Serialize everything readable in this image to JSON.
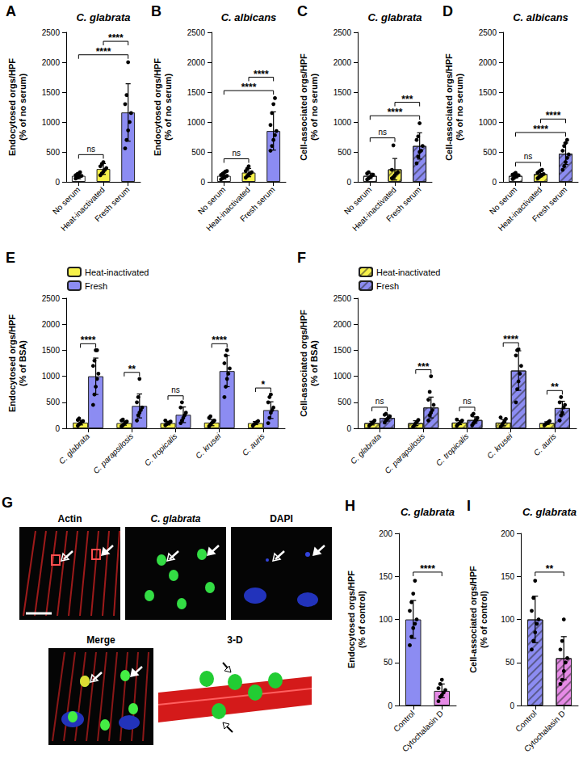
{
  "chart_data": [
    {
      "panel": "A",
      "type": "bar",
      "title": "C. glabrata",
      "y_label": [
        "Endocytosed orgs/HPF",
        "(% of no serum)"
      ],
      "categories": [
        "No serum",
        "Heat-inactivated",
        "Fresh serum"
      ],
      "values": [
        100,
        215,
        1160
      ],
      "errors": [
        50,
        90,
        480
      ],
      "points": [
        [
          55,
          70,
          85,
          95,
          100,
          110,
          125,
          140,
          160
        ],
        [
          110,
          140,
          170,
          200,
          230,
          260,
          300,
          330
        ],
        [
          560,
          700,
          860,
          1000,
          1150,
          1300,
          1450,
          2000
        ]
      ],
      "colors": [
        "#ffffff",
        "#f7f24a",
        "#8c8cf2"
      ],
      "ylim": [
        0,
        2500
      ],
      "yticks": [
        0,
        500,
        1000,
        1500,
        2000,
        2500
      ],
      "grid": false,
      "comparisons": [
        {
          "between": [
            0,
            1
          ],
          "label": "ns"
        },
        {
          "between": [
            0,
            2
          ],
          "label": "****"
        },
        {
          "between": [
            1,
            2
          ],
          "label": "****"
        }
      ]
    },
    {
      "panel": "B",
      "type": "bar",
      "title": "C. albicans",
      "y_label": [
        "Endocytosed orgs/HPF",
        "(% of no serum)"
      ],
      "categories": [
        "No serum",
        "Heat-inactivated",
        "Fresh serum"
      ],
      "values": [
        100,
        155,
        850
      ],
      "errors": [
        55,
        70,
        320
      ],
      "points": [
        [
          40,
          60,
          75,
          90,
          100,
          115,
          130,
          150,
          170,
          180
        ],
        [
          70,
          100,
          120,
          140,
          160,
          180,
          220,
          260
        ],
        [
          520,
          600,
          700,
          780,
          850,
          950,
          1150,
          1300,
          1400
        ]
      ],
      "colors": [
        "#ffffff",
        "#f7f24a",
        "#8c8cf2"
      ],
      "ylim": [
        0,
        2500
      ],
      "yticks": [
        0,
        500,
        1000,
        1500,
        2000,
        2500
      ],
      "grid": false,
      "comparisons": [
        {
          "between": [
            0,
            1
          ],
          "label": "ns"
        },
        {
          "between": [
            0,
            2
          ],
          "label": "****"
        },
        {
          "between": [
            1,
            2
          ],
          "label": "****"
        }
      ]
    },
    {
      "panel": "C",
      "type": "bar",
      "title": "C. glabrata",
      "y_label": [
        "Cell-associated orgs/HPF",
        "(% of no serum)"
      ],
      "categories": [
        "No serum",
        "Heat-inactivated",
        "Fresh serum"
      ],
      "values": [
        100,
        210,
        600
      ],
      "errors": [
        45,
        180,
        220
      ],
      "points": [
        [
          40,
          60,
          80,
          100,
          120,
          140,
          160
        ],
        [
          60,
          80,
          110,
          140,
          160,
          200,
          610
        ],
        [
          310,
          420,
          500,
          520,
          600,
          700,
          760,
          980
        ]
      ],
      "colors": [
        "#ffffff",
        "#f7f24a",
        "#8c8cf2"
      ],
      "line_style": "hatched",
      "ylim": [
        0,
        2500
      ],
      "yticks": [
        0,
        500,
        1000,
        1500,
        2000,
        2500
      ],
      "grid": false,
      "comparisons": [
        {
          "between": [
            0,
            1
          ],
          "label": "ns"
        },
        {
          "between": [
            0,
            2
          ],
          "label": "****"
        },
        {
          "between": [
            1,
            2
          ],
          "label": "***"
        }
      ]
    },
    {
      "panel": "D",
      "type": "bar",
      "title": "C. albicans",
      "y_label": [
        "Cell-associated orgs/HPF",
        "(% of no serum)"
      ],
      "categories": [
        "No serum",
        "Heat-inactivated",
        "Fresh serum"
      ],
      "values": [
        100,
        130,
        470
      ],
      "errors": [
        35,
        45,
        180
      ],
      "points": [
        [
          50,
          70,
          90,
          100,
          110,
          120,
          130,
          150
        ],
        [
          60,
          80,
          100,
          120,
          130,
          150,
          170,
          190,
          200
        ],
        [
          200,
          260,
          330,
          400,
          460,
          520,
          600,
          650,
          700
        ]
      ],
      "colors": [
        "#ffffff",
        "#f7f24a",
        "#8c8cf2"
      ],
      "line_style": "hatched",
      "ylim": [
        0,
        2500
      ],
      "yticks": [
        0,
        500,
        1000,
        1500,
        2000,
        2500
      ],
      "grid": false,
      "comparisons": [
        {
          "between": [
            0,
            1
          ],
          "label": "ns"
        },
        {
          "between": [
            0,
            2
          ],
          "label": "****"
        },
        {
          "between": [
            1,
            2
          ],
          "label": "****"
        }
      ]
    },
    {
      "panel": "E",
      "type": "bar",
      "y_label": [
        "Endocytosed orgs/HPF",
        "(% of BSA)"
      ],
      "categories": [
        "C. glabrata",
        "C. parapsilosis",
        "C. tropicalis",
        "C. krusei",
        "C. auris"
      ],
      "series": [
        {
          "name": "Heat-inactivated",
          "color": "#f7f24a",
          "values": [
            110,
            100,
            100,
            110,
            100
          ],
          "errors": [
            45,
            40,
            35,
            60,
            30
          ],
          "points": [
            [
              50,
              80,
              100,
              120,
              140,
              160,
              190
            ],
            [
              40,
              60,
              90,
              110,
              130,
              150,
              170
            ],
            [
              60,
              80,
              100,
              110,
              130,
              150
            ],
            [
              40,
              70,
              100,
              120,
              150,
              200,
              230
            ],
            [
              50,
              80,
              100,
              120,
              140
            ]
          ]
        },
        {
          "name": "Fresh",
          "color": "#8c8cf2",
          "values": [
            1000,
            430,
            260,
            1100,
            350
          ],
          "errors": [
            350,
            230,
            150,
            300,
            160
          ],
          "points": [
            [
              450,
              650,
              800,
              950,
              1050,
              1200,
              1300,
              1500,
              1500
            ],
            [
              150,
              250,
              300,
              350,
              400,
              500,
              600,
              950
            ],
            [
              100,
              150,
              200,
              250,
              300,
              400,
              500
            ],
            [
              600,
              800,
              950,
              1050,
              1150,
              1250,
              1400,
              1500
            ],
            [
              100,
              200,
              300,
              350,
              400,
              500,
              600,
              650
            ]
          ]
        }
      ],
      "significance": [
        "****",
        "**",
        "ns",
        "****",
        "*"
      ],
      "legend": "top-left",
      "ylim": [
        0,
        2500
      ],
      "yticks": [
        0,
        500,
        1000,
        1500,
        2000,
        2500
      ],
      "grid": false
    },
    {
      "panel": "F",
      "type": "bar",
      "y_label": [
        "Cell-associated orgs/HPF",
        "(% of BSA)"
      ],
      "categories": [
        "C. glabrata",
        "C. parapsilosis",
        "C. tropicalis",
        "C. krusei",
        "C. auris"
      ],
      "series": [
        {
          "name": "Heat-inactivated",
          "color": "#f7f24a",
          "line_style": "hatched",
          "values": [
            100,
            100,
            110,
            110,
            100
          ],
          "errors": [
            35,
            45,
            40,
            60,
            25
          ],
          "points": [
            [
              50,
              80,
              100,
              120,
              150
            ],
            [
              30,
              60,
              100,
              130,
              160
            ],
            [
              50,
              80,
              100,
              120,
              150,
              170
            ],
            [
              30,
              60,
              100,
              130,
              180,
              210
            ],
            [
              60,
              80,
              100,
              120,
              140
            ]
          ]
        },
        {
          "name": "Fresh",
          "color": "#8c8cf2",
          "line_style": "hatched",
          "values": [
            200,
            400,
            160,
            1110,
            390
          ],
          "errors": [
            60,
            200,
            60,
            380,
            130
          ],
          "points": [
            [
              110,
              150,
              180,
              200,
              230,
              260,
              280
            ],
            [
              150,
              250,
              300,
              350,
              450,
              550,
              700,
              1000
            ],
            [
              60,
              100,
              130,
              160,
              200,
              250,
              280
            ],
            [
              500,
              750,
              900,
              1050,
              1200,
              1400,
              1500,
              1520
            ],
            [
              150,
              250,
              300,
              400,
              450,
              500,
              600
            ]
          ]
        }
      ],
      "significance": [
        "ns",
        "***",
        "ns",
        "****",
        "**"
      ],
      "legend": "top-left",
      "ylim": [
        0,
        2500
      ],
      "yticks": [
        0,
        500,
        1000,
        1500,
        2000,
        2500
      ],
      "grid": false
    },
    {
      "panel": "H",
      "type": "bar",
      "title": "C. glabrata",
      "y_label": [
        "Endocytosed orgs/HPF",
        "(% of control)"
      ],
      "categories": [
        "Control",
        "Cytochalasin D"
      ],
      "values": [
        100,
        17
      ],
      "errors": [
        22,
        8
      ],
      "points": [
        [
          70,
          80,
          90,
          95,
          100,
          110,
          120,
          130,
          145
        ],
        [
          5,
          10,
          12,
          15,
          18,
          20,
          25,
          30
        ]
      ],
      "colors": [
        "#8c8cf2",
        "#e68ae6"
      ],
      "ylim": [
        0,
        200
      ],
      "yticks": [
        0,
        50,
        100,
        150,
        200
      ],
      "grid": false,
      "comparisons": [
        {
          "between": [
            0,
            1
          ],
          "label": "****"
        }
      ]
    },
    {
      "panel": "I",
      "type": "bar",
      "title": "C. glabrata",
      "y_label": [
        "Cell-associated orgs/HPF",
        "(% of control)"
      ],
      "categories": [
        "Control",
        "Cytochalasin D"
      ],
      "values": [
        100,
        55
      ],
      "errors": [
        27,
        25
      ],
      "points": [
        [
          65,
          75,
          85,
          95,
          100,
          110,
          125,
          145
        ],
        [
          25,
          30,
          40,
          50,
          55,
          65,
          75,
          100
        ]
      ],
      "colors": [
        "#8c8cf2",
        "#e68ae6"
      ],
      "line_style": "hatched",
      "ylim": [
        0,
        200
      ],
      "yticks": [
        0,
        50,
        100,
        150,
        200
      ],
      "grid": false,
      "comparisons": [
        {
          "between": [
            0,
            1
          ],
          "label": "**"
        }
      ]
    }
  ],
  "image_panel": {
    "panel": "G",
    "tiles": [
      "Actin",
      "C. glabrata",
      "DAPI",
      "Merge",
      "3-D"
    ]
  }
}
